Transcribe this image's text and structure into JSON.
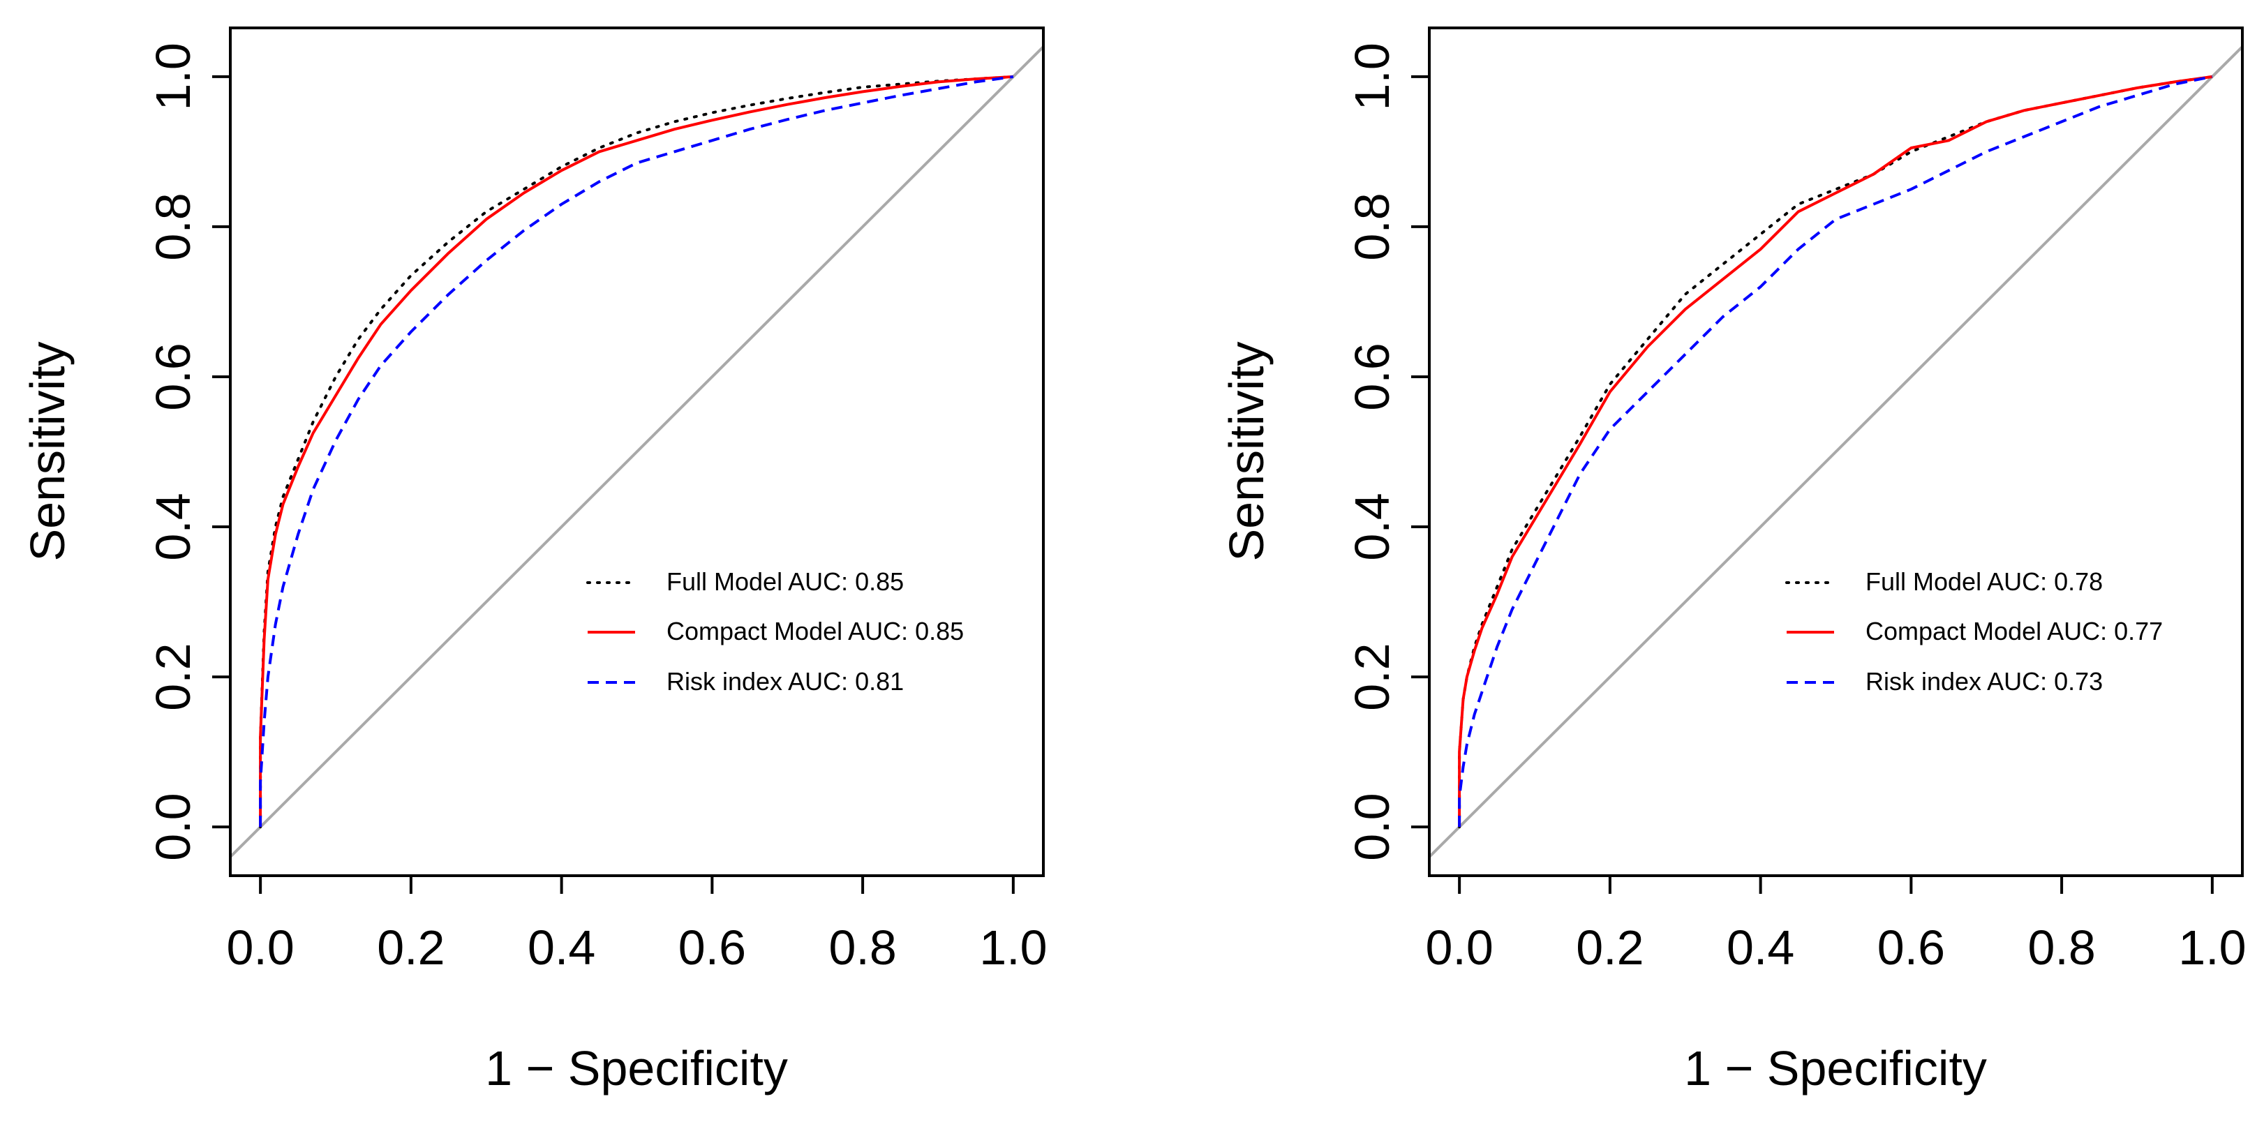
{
  "chart_data": [
    {
      "type": "line",
      "xlabel": "1 − Specificity",
      "ylabel": "Sensitivity",
      "xlim": [
        -0.04,
        1.04
      ],
      "ylim": [
        -0.065,
        1.065
      ],
      "x_ticks": [
        "0.0",
        "0.2",
        "0.4",
        "0.6",
        "0.8",
        "1.0"
      ],
      "y_ticks": [
        "0.0",
        "0.2",
        "0.4",
        "0.6",
        "0.8",
        "1.0"
      ],
      "grid": false,
      "legend_position": "bottom-right",
      "reference_line": {
        "x": [
          -0.04,
          1.04
        ],
        "y": [
          -0.04,
          1.04
        ],
        "color": "#a9a9a9"
      },
      "series": [
        {
          "name": "Full Model AUC: 0.85",
          "color": "#000000",
          "dash": "dotted",
          "x": [
            0,
            0,
            0.005,
            0.01,
            0.02,
            0.03,
            0.05,
            0.07,
            0.1,
            0.13,
            0.16,
            0.2,
            0.25,
            0.3,
            0.35,
            0.4,
            0.45,
            0.5,
            0.55,
            0.6,
            0.65,
            0.7,
            0.75,
            0.8,
            0.85,
            0.9,
            0.95,
            1
          ],
          "y": [
            0,
            0.12,
            0.26,
            0.34,
            0.4,
            0.44,
            0.49,
            0.54,
            0.6,
            0.65,
            0.69,
            0.735,
            0.78,
            0.82,
            0.85,
            0.88,
            0.905,
            0.925,
            0.94,
            0.952,
            0.962,
            0.971,
            0.979,
            0.986,
            0.99,
            0.994,
            0.997,
            1
          ]
        },
        {
          "name": "Compact Model AUC: 0.85",
          "color": "#ff0000",
          "dash": "solid",
          "x": [
            0,
            0,
            0.005,
            0.01,
            0.02,
            0.03,
            0.05,
            0.07,
            0.1,
            0.13,
            0.16,
            0.2,
            0.25,
            0.3,
            0.35,
            0.4,
            0.45,
            0.5,
            0.55,
            0.6,
            0.65,
            0.7,
            0.75,
            0.8,
            0.85,
            0.9,
            0.95,
            1
          ],
          "y": [
            0,
            0.12,
            0.25,
            0.33,
            0.39,
            0.43,
            0.48,
            0.525,
            0.575,
            0.625,
            0.67,
            0.715,
            0.765,
            0.81,
            0.845,
            0.875,
            0.9,
            0.915,
            0.93,
            0.942,
            0.953,
            0.963,
            0.972,
            0.98,
            0.987,
            0.993,
            0.997,
            1
          ]
        },
        {
          "name": "Risk index AUC: 0.81",
          "color": "#0000ff",
          "dash": "dashed",
          "x": [
            0,
            0,
            0.005,
            0.01,
            0.02,
            0.03,
            0.05,
            0.07,
            0.1,
            0.13,
            0.16,
            0.2,
            0.25,
            0.3,
            0.35,
            0.4,
            0.45,
            0.5,
            0.55,
            0.6,
            0.65,
            0.7,
            0.75,
            0.8,
            0.85,
            0.9,
            0.95,
            1
          ],
          "y": [
            0,
            0.06,
            0.14,
            0.2,
            0.27,
            0.32,
            0.39,
            0.45,
            0.515,
            0.57,
            0.615,
            0.66,
            0.71,
            0.755,
            0.795,
            0.83,
            0.86,
            0.885,
            0.9,
            0.915,
            0.93,
            0.943,
            0.955,
            0.965,
            0.975,
            0.984,
            0.993,
            1
          ]
        }
      ]
    },
    {
      "type": "line",
      "xlabel": "1 − Specificity",
      "ylabel": "Sensitivity",
      "xlim": [
        -0.04,
        1.04
      ],
      "ylim": [
        -0.065,
        1.065
      ],
      "x_ticks": [
        "0.0",
        "0.2",
        "0.4",
        "0.6",
        "0.8",
        "1.0"
      ],
      "y_ticks": [
        "0.0",
        "0.2",
        "0.4",
        "0.6",
        "0.8",
        "1.0"
      ],
      "grid": false,
      "legend_position": "bottom-right",
      "reference_line": {
        "x": [
          -0.04,
          1.04
        ],
        "y": [
          -0.04,
          1.04
        ],
        "color": "#a9a9a9"
      },
      "series": [
        {
          "name": "Full Model AUC: 0.78",
          "color": "#000000",
          "dash": "dotted",
          "x": [
            0,
            0,
            0.005,
            0.01,
            0.02,
            0.03,
            0.05,
            0.07,
            0.1,
            0.13,
            0.16,
            0.2,
            0.25,
            0.3,
            0.35,
            0.4,
            0.45,
            0.5,
            0.55,
            0.6,
            0.65,
            0.7,
            0.75,
            0.8,
            0.85,
            0.9,
            0.95,
            1
          ],
          "y": [
            0,
            0.1,
            0.17,
            0.2,
            0.24,
            0.27,
            0.32,
            0.37,
            0.42,
            0.47,
            0.52,
            0.59,
            0.65,
            0.71,
            0.75,
            0.79,
            0.83,
            0.85,
            0.87,
            0.9,
            0.92,
            0.94,
            0.955,
            0.965,
            0.975,
            0.985,
            0.993,
            1
          ]
        },
        {
          "name": "Compact Model AUC: 0.77",
          "color": "#ff0000",
          "dash": "solid",
          "x": [
            0,
            0,
            0.005,
            0.01,
            0.02,
            0.03,
            0.05,
            0.07,
            0.1,
            0.13,
            0.16,
            0.2,
            0.25,
            0.3,
            0.35,
            0.4,
            0.45,
            0.5,
            0.55,
            0.6,
            0.65,
            0.7,
            0.75,
            0.8,
            0.85,
            0.9,
            0.95,
            1
          ],
          "y": [
            0,
            0.1,
            0.17,
            0.2,
            0.235,
            0.265,
            0.31,
            0.36,
            0.41,
            0.46,
            0.51,
            0.58,
            0.64,
            0.69,
            0.73,
            0.77,
            0.82,
            0.845,
            0.87,
            0.905,
            0.915,
            0.94,
            0.955,
            0.965,
            0.975,
            0.985,
            0.993,
            1
          ]
        },
        {
          "name": "Risk index AUC: 0.73",
          "color": "#0000ff",
          "dash": "dashed",
          "x": [
            0,
            0,
            0.005,
            0.01,
            0.02,
            0.03,
            0.05,
            0.07,
            0.1,
            0.13,
            0.16,
            0.2,
            0.25,
            0.3,
            0.35,
            0.4,
            0.45,
            0.5,
            0.55,
            0.6,
            0.65,
            0.7,
            0.75,
            0.8,
            0.85,
            0.9,
            0.95,
            1
          ],
          "y": [
            0,
            0.04,
            0.08,
            0.11,
            0.15,
            0.18,
            0.24,
            0.29,
            0.35,
            0.41,
            0.47,
            0.53,
            0.58,
            0.63,
            0.68,
            0.72,
            0.77,
            0.81,
            0.83,
            0.85,
            0.875,
            0.9,
            0.92,
            0.94,
            0.96,
            0.975,
            0.99,
            1
          ]
        }
      ]
    }
  ]
}
